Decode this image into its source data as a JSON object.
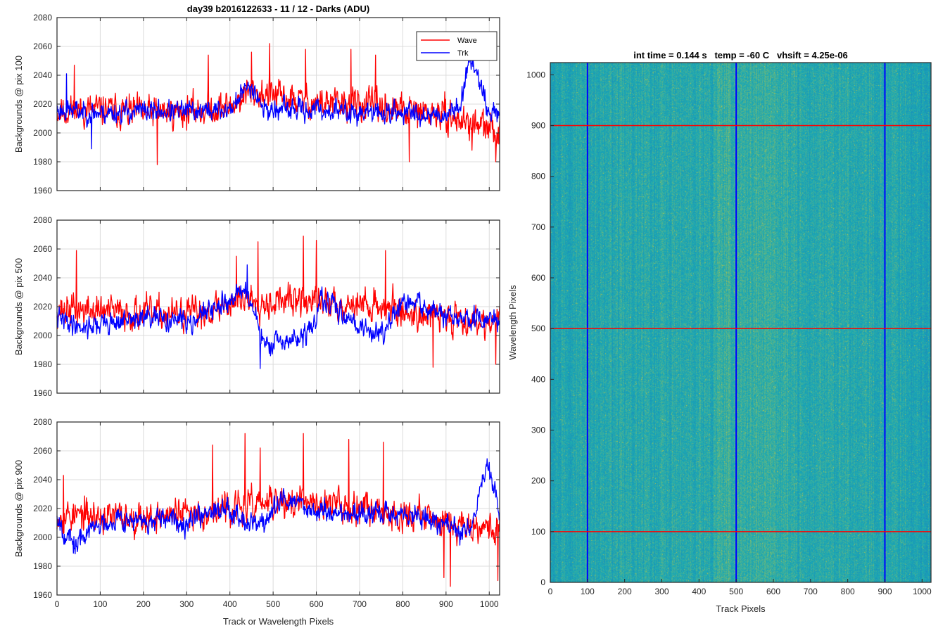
{
  "figure_title": "day39 b2016122633 - 11 / 12 - Darks (ADU)",
  "colors": {
    "wave": "#ff0000",
    "trk": "#0000ff",
    "grid": "#dcdcdc",
    "axis": "#262626",
    "heatmap_low": "#1a6fc0",
    "heatmap_mid": "#1aa9b4",
    "heatmap_high": "#c8c83c"
  },
  "chart_data": [
    {
      "type": "line",
      "id": "panel-pix100",
      "title": "day39 b2016122633 - 11 / 12 - Darks (ADU)",
      "ylabel": "Backgrounds @ pix 100",
      "xlabel": "",
      "xlim": [
        0,
        1024
      ],
      "ylim": [
        1960,
        2080
      ],
      "xticks": [
        0,
        100,
        200,
        300,
        400,
        500,
        600,
        700,
        800,
        900,
        1000
      ],
      "yticks": [
        1960,
        1980,
        2000,
        2020,
        2040,
        2060,
        2080
      ],
      "show_x_tick_labels": false,
      "grid": true,
      "legend": {
        "placement": "top-right",
        "entries": [
          "Wave",
          "Trk"
        ]
      },
      "series": [
        {
          "name": "Wave",
          "color": "#ff0000",
          "noise": 9,
          "seed": 11,
          "anchors": [
            [
              0,
              2015
            ],
            [
              100,
              2016
            ],
            [
              200,
              2014
            ],
            [
              300,
              2015
            ],
            [
              400,
              2018
            ],
            [
              440,
              2028
            ],
            [
              480,
              2027
            ],
            [
              560,
              2022
            ],
            [
              640,
              2020
            ],
            [
              700,
              2020
            ],
            [
              800,
              2015
            ],
            [
              900,
              2012
            ],
            [
              960,
              2006
            ],
            [
              1024,
              2000
            ]
          ],
          "spikes": [
            [
              40,
              2047
            ],
            [
              232,
              1978
            ],
            [
              350,
              2054
            ],
            [
              450,
              2056
            ],
            [
              492,
              2062
            ],
            [
              575,
              2058
            ],
            [
              680,
              2058
            ],
            [
              737,
              2054
            ],
            [
              815,
              1980
            ],
            [
              960,
              1988
            ],
            [
              1015,
              1980
            ]
          ]
        },
        {
          "name": "Trk",
          "color": "#0000ff",
          "noise": 6,
          "seed": 23,
          "anchors": [
            [
              0,
              2016
            ],
            [
              100,
              2014
            ],
            [
              200,
              2015
            ],
            [
              300,
              2015
            ],
            [
              400,
              2016
            ],
            [
              430,
              2028
            ],
            [
              450,
              2034
            ],
            [
              480,
              2016
            ],
            [
              600,
              2016
            ],
            [
              700,
              2014
            ],
            [
              800,
              2014
            ],
            [
              900,
              2013
            ],
            [
              930,
              2018
            ],
            [
              950,
              2045
            ],
            [
              965,
              2050
            ],
            [
              985,
              2030
            ],
            [
              1000,
              2012
            ],
            [
              1024,
              2016
            ]
          ],
          "spikes": [
            [
              22,
              2041
            ],
            [
              80,
              1989
            ]
          ]
        }
      ]
    },
    {
      "type": "line",
      "id": "panel-pix500",
      "title": "",
      "ylabel": "Backgrounds @ pix 500",
      "xlabel": "",
      "xlim": [
        0,
        1024
      ],
      "ylim": [
        1960,
        2080
      ],
      "xticks": [
        0,
        100,
        200,
        300,
        400,
        500,
        600,
        700,
        800,
        900,
        1000
      ],
      "yticks": [
        1960,
        1980,
        2000,
        2020,
        2040,
        2060,
        2080
      ],
      "show_x_tick_labels": false,
      "grid": true,
      "series": [
        {
          "name": "Wave",
          "color": "#ff0000",
          "noise": 9,
          "seed": 37,
          "anchors": [
            [
              0,
              2018
            ],
            [
              100,
              2017
            ],
            [
              200,
              2015
            ],
            [
              300,
              2014
            ],
            [
              380,
              2020
            ],
            [
              430,
              2026
            ],
            [
              480,
              2024
            ],
            [
              560,
              2024
            ],
            [
              640,
              2022
            ],
            [
              700,
              2022
            ],
            [
              760,
              2020
            ],
            [
              800,
              2016
            ],
            [
              900,
              2013
            ],
            [
              1024,
              2010
            ]
          ],
          "spikes": [
            [
              45,
              2059
            ],
            [
              415,
              2055
            ],
            [
              465,
              2065
            ],
            [
              570,
              2069
            ],
            [
              600,
              2066
            ],
            [
              760,
              2059
            ],
            [
              870,
              1978
            ],
            [
              1015,
              1980
            ]
          ]
        },
        {
          "name": "Trk",
          "color": "#0000ff",
          "noise": 6,
          "seed": 41,
          "anchors": [
            [
              0,
              2012
            ],
            [
              60,
              2006
            ],
            [
              100,
              2008
            ],
            [
              200,
              2012
            ],
            [
              300,
              2010
            ],
            [
              380,
              2020
            ],
            [
              420,
              2030
            ],
            [
              440,
              2032
            ],
            [
              470,
              2000
            ],
            [
              490,
              1992
            ],
            [
              520,
              1995
            ],
            [
              560,
              1998
            ],
            [
              590,
              2004
            ],
            [
              610,
              2024
            ],
            [
              640,
              2020
            ],
            [
              680,
              2012
            ],
            [
              720,
              2002
            ],
            [
              760,
              2004
            ],
            [
              800,
              2022
            ],
            [
              840,
              2022
            ],
            [
              900,
              2012
            ],
            [
              1024,
              2010
            ]
          ],
          "spikes": [
            [
              470,
              1977
            ],
            [
              440,
              2049
            ]
          ]
        }
      ]
    },
    {
      "type": "line",
      "id": "panel-pix900",
      "title": "",
      "ylabel": "Backgrounds @ pix 900",
      "xlabel": "Track or Wavelength Pixels",
      "xlim": [
        0,
        1024
      ],
      "ylim": [
        1960,
        2080
      ],
      "xticks": [
        0,
        100,
        200,
        300,
        400,
        500,
        600,
        700,
        800,
        900,
        1000
      ],
      "yticks": [
        1960,
        1980,
        2000,
        2020,
        2040,
        2060,
        2080
      ],
      "show_x_tick_labels": true,
      "grid": true,
      "series": [
        {
          "name": "Wave",
          "color": "#ff0000",
          "noise": 9,
          "seed": 53,
          "anchors": [
            [
              0,
              2016
            ],
            [
              100,
              2014
            ],
            [
              200,
              2014
            ],
            [
              300,
              2016
            ],
            [
              400,
              2020
            ],
            [
              500,
              2024
            ],
            [
              600,
              2024
            ],
            [
              700,
              2022
            ],
            [
              800,
              2016
            ],
            [
              900,
              2012
            ],
            [
              1024,
              2006
            ]
          ],
          "spikes": [
            [
              15,
              2043
            ],
            [
              360,
              2064
            ],
            [
              435,
              2072
            ],
            [
              470,
              2062
            ],
            [
              570,
              2072
            ],
            [
              675,
              2068
            ],
            [
              755,
              2066
            ],
            [
              895,
              1972
            ],
            [
              910,
              1966
            ],
            [
              1020,
              1970
            ]
          ]
        },
        {
          "name": "Trk",
          "color": "#0000ff",
          "noise": 6,
          "seed": 67,
          "anchors": [
            [
              0,
              2016
            ],
            [
              20,
              2002
            ],
            [
              40,
              1994
            ],
            [
              80,
              2006
            ],
            [
              140,
              2014
            ],
            [
              200,
              2010
            ],
            [
              300,
              2012
            ],
            [
              360,
              2020
            ],
            [
              400,
              2020
            ],
            [
              450,
              2010
            ],
            [
              480,
              2010
            ],
            [
              520,
              2026
            ],
            [
              560,
              2024
            ],
            [
              600,
              2018
            ],
            [
              700,
              2016
            ],
            [
              800,
              2016
            ],
            [
              900,
              2010
            ],
            [
              930,
              2002
            ],
            [
              960,
              2008
            ],
            [
              980,
              2035
            ],
            [
              995,
              2048
            ],
            [
              1010,
              2036
            ],
            [
              1024,
              2016
            ]
          ],
          "spikes": [
            [
              1000,
              2052
            ],
            [
              38,
              1989
            ]
          ]
        }
      ]
    },
    {
      "type": "heatmap",
      "id": "panel-image",
      "title": "int time = 0.144 s   temp = -60 C   vhsift = 4.25e-06",
      "xlabel": "Track Pixels",
      "ylabel": "Wavelength Pixels",
      "xlim": [
        0,
        1024
      ],
      "ylim": [
        0,
        1024
      ],
      "xticks": [
        0,
        100,
        200,
        300,
        400,
        500,
        600,
        700,
        800,
        900,
        1000
      ],
      "yticks": [
        0,
        100,
        200,
        300,
        400,
        500,
        600,
        700,
        800,
        900,
        1000
      ],
      "vertical_lines": [
        100,
        500,
        900
      ],
      "horizontal_lines": [
        100,
        500,
        900
      ],
      "vertical_line_color": "#0000ff",
      "horizontal_line_color": "#ff0000"
    }
  ]
}
